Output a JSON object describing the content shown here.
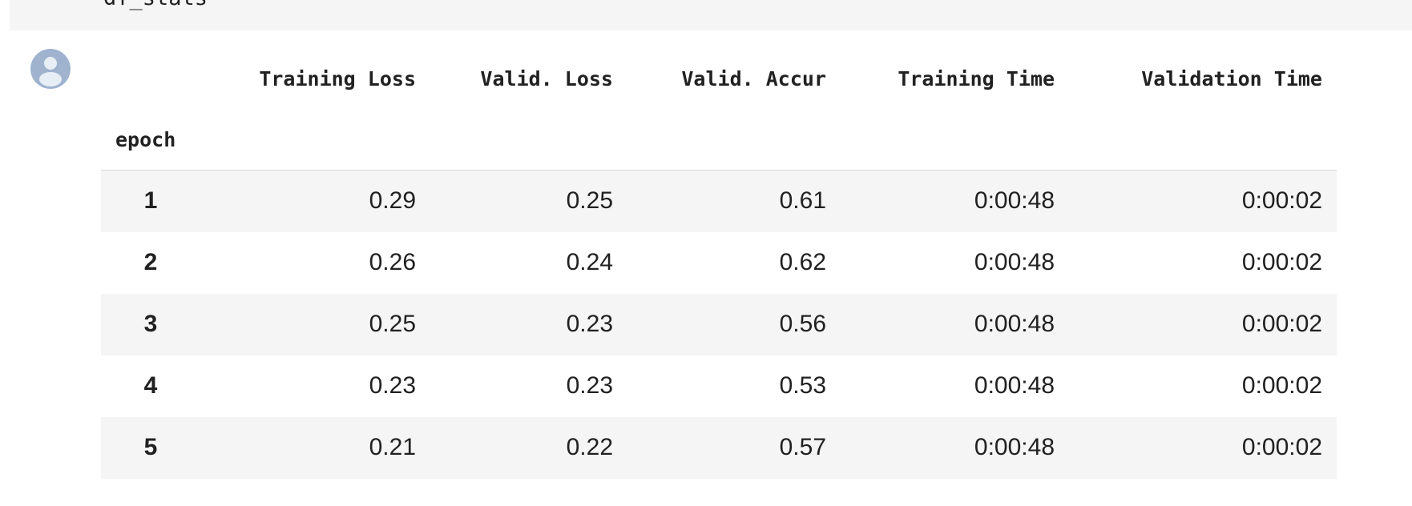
{
  "code_cell": {
    "visible_text": "df_stats"
  },
  "output": {
    "avatar_icon": "user-avatar-icon",
    "avatar_color": "#9fb3cf"
  },
  "table": {
    "index_name": "epoch",
    "columns": [
      "Training Loss",
      "Valid. Loss",
      "Valid. Accur",
      "Training Time",
      "Validation Time"
    ],
    "rows": [
      {
        "index": "1",
        "cells": [
          "0.29",
          "0.25",
          "0.61",
          "0:00:48",
          "0:00:02"
        ]
      },
      {
        "index": "2",
        "cells": [
          "0.26",
          "0.24",
          "0.62",
          "0:00:48",
          "0:00:02"
        ]
      },
      {
        "index": "3",
        "cells": [
          "0.25",
          "0.23",
          "0.56",
          "0:00:48",
          "0:00:02"
        ]
      },
      {
        "index": "4",
        "cells": [
          "0.23",
          "0.23",
          "0.53",
          "0:00:48",
          "0:00:02"
        ]
      },
      {
        "index": "5",
        "cells": [
          "0.21",
          "0.22",
          "0.57",
          "0:00:48",
          "0:00:02"
        ]
      }
    ]
  }
}
